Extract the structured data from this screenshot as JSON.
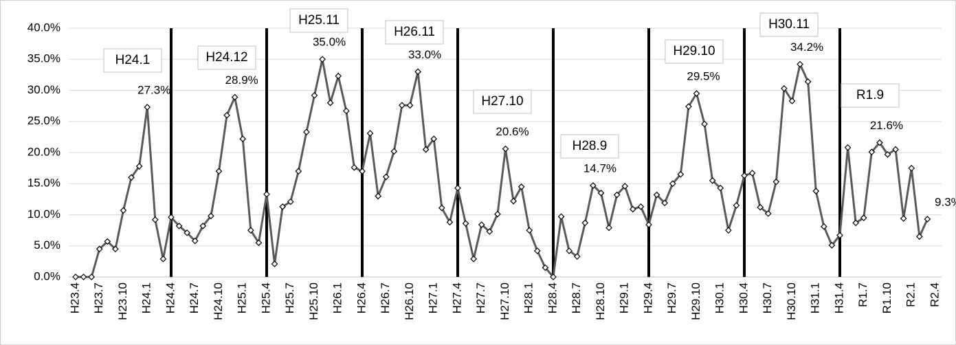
{
  "chart_data": {
    "type": "line",
    "categories": [
      "H23.4",
      null,
      null,
      "H23.7",
      null,
      null,
      "H23.10",
      null,
      null,
      "H24.1",
      null,
      null,
      "H24.4",
      null,
      null,
      "H24.7",
      null,
      null,
      "H24.10",
      null,
      null,
      "H25.1",
      null,
      null,
      "H25.4",
      null,
      null,
      "H25.7",
      null,
      null,
      "H25.10",
      null,
      null,
      "H26.1",
      null,
      null,
      "H26.4",
      null,
      null,
      "H26.7",
      null,
      null,
      "H26.10",
      null,
      null,
      "H27.1",
      null,
      null,
      "H27.4",
      null,
      null,
      "H27.7",
      null,
      null,
      "H27.10",
      null,
      null,
      "H28.1",
      null,
      null,
      "H28.4",
      null,
      null,
      "H28.7",
      null,
      null,
      "H28.10",
      null,
      null,
      "H29.1",
      null,
      null,
      "H29.4",
      null,
      null,
      "H29.7",
      null,
      null,
      "H29.10",
      null,
      null,
      "H30.1",
      null,
      null,
      "H30.4",
      null,
      null,
      "H30.7",
      null,
      null,
      "H30.10",
      null,
      null,
      "H31.1",
      null,
      null,
      "H31.4",
      null,
      null,
      "R1.7",
      null,
      null,
      "R1.10",
      null,
      null,
      "R2.1",
      null,
      null,
      "R2.4"
    ],
    "series": [
      {
        "color": "#595959",
        "values": [
          0,
          0,
          0,
          4.5,
          5.7,
          4.5,
          10.7,
          16.0,
          17.8,
          27.3,
          9.2,
          2.9,
          9.6,
          8.2,
          7.1,
          5.8,
          8.2,
          9.8,
          17.0,
          26.0,
          28.9,
          22.2,
          7.5,
          5.5,
          13.3,
          2.1,
          11.3,
          12.1,
          17.0,
          23.3,
          29.2,
          35.0,
          28.0,
          32.3,
          26.7,
          17.6,
          17.0,
          23.1,
          13.0,
          16.1,
          20.2,
          27.6,
          27.6,
          33.0,
          20.5,
          22.2,
          11.1,
          8.8,
          14.3,
          8.6,
          2.9,
          8.4,
          7.3,
          10.1,
          20.6,
          12.2,
          14.5,
          7.5,
          4.2,
          1.5,
          0,
          9.7,
          4.2,
          3.3,
          8.7,
          14.7,
          13.5,
          7.9,
          13.2,
          14.6,
          10.9,
          11.3,
          8.4,
          13.2,
          11.9,
          15.0,
          16.5,
          27.4,
          29.5,
          24.6,
          15.5,
          14.3,
          7.5,
          11.5,
          16.3,
          16.7,
          11.2,
          10.2,
          15.3,
          30.3,
          28.3,
          34.2,
          31.4,
          13.8,
          8.1,
          5.1,
          6.7,
          20.8,
          8.7,
          9.5,
          20.1,
          21.6,
          19.7,
          20.5,
          9.4,
          17.5,
          6.5,
          9.3,
          null
        ],
        "value_labels": [
          null,
          null,
          null,
          null,
          null,
          null,
          null,
          null,
          null,
          "27.3%",
          null,
          null,
          null,
          null,
          null,
          null,
          null,
          null,
          null,
          null,
          "28.9%",
          null,
          null,
          null,
          null,
          null,
          null,
          null,
          null,
          null,
          null,
          "35.0%",
          null,
          null,
          null,
          null,
          null,
          null,
          null,
          null,
          null,
          null,
          null,
          "33.0%",
          null,
          null,
          null,
          null,
          null,
          null,
          null,
          null,
          null,
          null,
          "20.6%",
          null,
          null,
          null,
          null,
          null,
          null,
          null,
          null,
          null,
          null,
          "14.7%",
          null,
          null,
          null,
          null,
          null,
          null,
          null,
          null,
          null,
          null,
          null,
          null,
          "29.5%",
          null,
          null,
          null,
          null,
          null,
          null,
          null,
          null,
          null,
          null,
          null,
          null,
          "34.2%",
          null,
          null,
          null,
          null,
          null,
          null,
          null,
          null,
          null,
          "21.6%",
          null,
          null,
          null,
          null,
          null,
          "9.3%",
          null
        ]
      }
    ],
    "annotations": [
      "H24.1",
      "H24.12",
      "H25.11",
      "H26.11",
      "H27.10",
      "H28.9",
      "H29.10",
      "H30.11",
      "R1.9"
    ],
    "ylim": [
      0,
      40
    ],
    "yticks": [
      {
        "value": 0,
        "label": "0.0%"
      },
      {
        "value": 5,
        "label": "5.0%"
      },
      {
        "value": 10,
        "label": "10.0%"
      },
      {
        "value": 15,
        "label": "15.0%"
      },
      {
        "value": 20,
        "label": "20.0%"
      },
      {
        "value": 25,
        "label": "25.0%"
      },
      {
        "value": 30,
        "label": "30.0%"
      },
      {
        "value": 35,
        "label": "35.0%"
      },
      {
        "value": 40,
        "label": "40.0%"
      }
    ],
    "grid": true
  }
}
